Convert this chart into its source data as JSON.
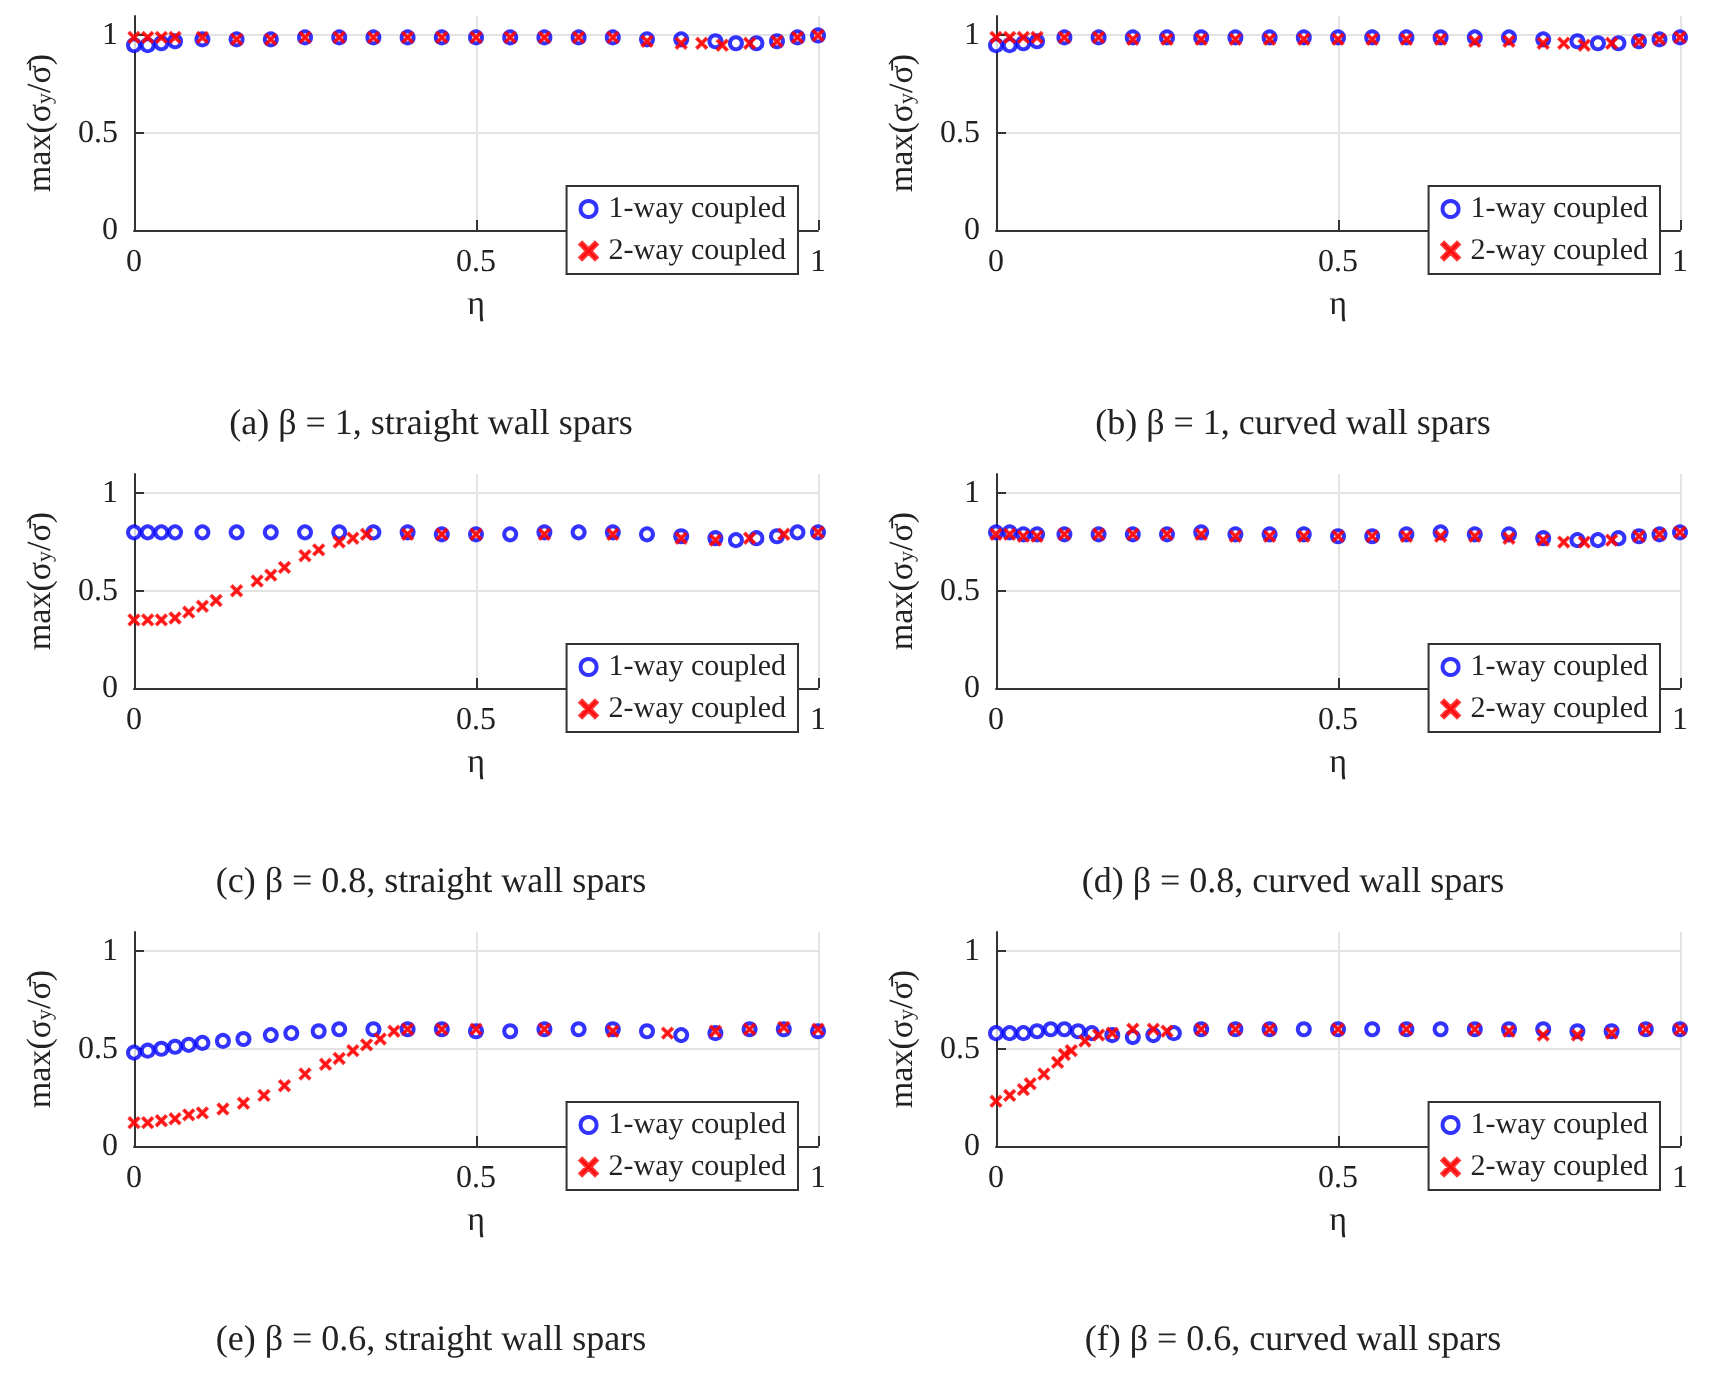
{
  "chart_data": [
    {
      "type": "scatter",
      "title": "(a) β = 1, straight wall spars",
      "xlabel": "η",
      "ylabel": "max(σ$_{y}$/σ̄)",
      "xlim": [
        0,
        1
      ],
      "xticks": [
        0,
        0.5,
        1
      ],
      "ylim": [
        0,
        1.1
      ],
      "yticks": [
        0,
        0.5,
        1
      ],
      "grid": true,
      "legend": "bottom right",
      "series": [
        {
          "name": "1-way coupled",
          "color": "#0000ff",
          "marker": "circle",
          "x": [
            0,
            0.02,
            0.04,
            0.06,
            0.1,
            0.15,
            0.2,
            0.25,
            0.3,
            0.35,
            0.4,
            0.45,
            0.5,
            0.55,
            0.6,
            0.65,
            0.7,
            0.75,
            0.8,
            0.85,
            0.88,
            0.91,
            0.94,
            0.97,
            1
          ],
          "values": [
            0.95,
            0.95,
            0.96,
            0.97,
            0.98,
            0.98,
            0.98,
            0.99,
            0.99,
            0.99,
            0.99,
            0.99,
            0.99,
            0.99,
            0.99,
            0.99,
            0.99,
            0.98,
            0.98,
            0.97,
            0.96,
            0.96,
            0.97,
            0.99,
            1
          ]
        },
        {
          "name": "2-way coupled",
          "color": "#ff0000",
          "marker": "cross",
          "x": [
            0,
            0.02,
            0.04,
            0.06,
            0.1,
            0.15,
            0.2,
            0.25,
            0.3,
            0.35,
            0.4,
            0.45,
            0.5,
            0.55,
            0.6,
            0.65,
            0.7,
            0.75,
            0.8,
            0.83,
            0.86,
            0.9,
            0.94,
            0.97,
            1
          ],
          "values": [
            0.99,
            0.99,
            0.99,
            0.99,
            0.99,
            0.98,
            0.98,
            0.99,
            0.99,
            0.99,
            0.99,
            0.99,
            0.99,
            0.99,
            0.99,
            0.99,
            0.99,
            0.97,
            0.96,
            0.96,
            0.95,
            0.96,
            0.97,
            0.99,
            1
          ]
        }
      ]
    },
    {
      "type": "scatter",
      "title": "(b) β = 1, curved wall spars",
      "xlabel": "η",
      "ylabel": "max(σ$_{y}$/σ̄)",
      "xlim": [
        0,
        1
      ],
      "xticks": [
        0,
        0.5,
        1
      ],
      "ylim": [
        0,
        1.1
      ],
      "yticks": [
        0,
        0.5,
        1
      ],
      "grid": true,
      "legend": "bottom right",
      "series": [
        {
          "name": "1-way coupled",
          "color": "#0000ff",
          "marker": "circle",
          "x": [
            0,
            0.02,
            0.04,
            0.06,
            0.1,
            0.15,
            0.2,
            0.25,
            0.3,
            0.35,
            0.4,
            0.45,
            0.5,
            0.55,
            0.6,
            0.65,
            0.7,
            0.75,
            0.8,
            0.85,
            0.88,
            0.91,
            0.94,
            0.97,
            1
          ],
          "values": [
            0.95,
            0.95,
            0.96,
            0.97,
            0.99,
            0.99,
            0.99,
            0.99,
            0.99,
            0.99,
            0.99,
            0.99,
            0.99,
            0.99,
            0.99,
            0.99,
            0.99,
            0.99,
            0.98,
            0.97,
            0.96,
            0.96,
            0.97,
            0.98,
            0.99
          ]
        },
        {
          "name": "2-way coupled",
          "color": "#ff0000",
          "marker": "cross",
          "x": [
            0,
            0.02,
            0.04,
            0.06,
            0.1,
            0.15,
            0.2,
            0.25,
            0.3,
            0.35,
            0.4,
            0.45,
            0.5,
            0.55,
            0.6,
            0.65,
            0.7,
            0.75,
            0.8,
            0.83,
            0.86,
            0.9,
            0.94,
            0.97,
            1
          ],
          "values": [
            0.99,
            0.99,
            0.99,
            0.99,
            0.99,
            0.99,
            0.98,
            0.98,
            0.98,
            0.98,
            0.98,
            0.98,
            0.98,
            0.98,
            0.98,
            0.98,
            0.97,
            0.97,
            0.96,
            0.96,
            0.95,
            0.96,
            0.97,
            0.98,
            0.99
          ]
        }
      ]
    },
    {
      "type": "scatter",
      "title": "(c) β = 0.8, straight wall spars",
      "xlabel": "η",
      "ylabel": "max(σ$_{y}$/σ̄)",
      "xlim": [
        0,
        1
      ],
      "xticks": [
        0,
        0.5,
        1
      ],
      "ylim": [
        0,
        1.1
      ],
      "yticks": [
        0,
        0.5,
        1
      ],
      "grid": true,
      "legend": "bottom right",
      "series": [
        {
          "name": "1-way coupled",
          "color": "#0000ff",
          "marker": "circle",
          "x": [
            0,
            0.02,
            0.04,
            0.06,
            0.1,
            0.15,
            0.2,
            0.25,
            0.3,
            0.35,
            0.4,
            0.45,
            0.5,
            0.55,
            0.6,
            0.65,
            0.7,
            0.75,
            0.8,
            0.85,
            0.88,
            0.91,
            0.94,
            0.97,
            1
          ],
          "values": [
            0.8,
            0.8,
            0.8,
            0.8,
            0.8,
            0.8,
            0.8,
            0.8,
            0.8,
            0.8,
            0.8,
            0.79,
            0.79,
            0.79,
            0.8,
            0.8,
            0.8,
            0.79,
            0.78,
            0.77,
            0.76,
            0.77,
            0.78,
            0.8,
            0.8
          ]
        },
        {
          "name": "2-way coupled",
          "color": "#ff0000",
          "marker": "cross",
          "x": [
            0,
            0.02,
            0.04,
            0.06,
            0.08,
            0.1,
            0.12,
            0.15,
            0.18,
            0.2,
            0.22,
            0.25,
            0.27,
            0.3,
            0.32,
            0.34,
            0.4,
            0.45,
            0.5,
            0.6,
            0.7,
            0.8,
            0.85,
            0.9,
            0.95,
            1
          ],
          "values": [
            0.35,
            0.35,
            0.35,
            0.36,
            0.39,
            0.42,
            0.45,
            0.5,
            0.55,
            0.58,
            0.62,
            0.68,
            0.71,
            0.75,
            0.77,
            0.79,
            0.79,
            0.79,
            0.79,
            0.79,
            0.79,
            0.77,
            0.76,
            0.77,
            0.79,
            0.8
          ]
        }
      ]
    },
    {
      "type": "scatter",
      "title": "(d) β = 0.8, curved wall spars",
      "xlabel": "η",
      "ylabel": "max(σ$_{y}$/σ̄)",
      "xlim": [
        0,
        1
      ],
      "xticks": [
        0,
        0.5,
        1
      ],
      "ylim": [
        0,
        1.1
      ],
      "yticks": [
        0,
        0.5,
        1
      ],
      "grid": true,
      "legend": "bottom right",
      "series": [
        {
          "name": "1-way coupled",
          "color": "#0000ff",
          "marker": "circle",
          "x": [
            0,
            0.02,
            0.04,
            0.06,
            0.1,
            0.15,
            0.2,
            0.25,
            0.3,
            0.35,
            0.4,
            0.45,
            0.5,
            0.55,
            0.6,
            0.65,
            0.7,
            0.75,
            0.8,
            0.85,
            0.88,
            0.91,
            0.94,
            0.97,
            1
          ],
          "values": [
            0.8,
            0.8,
            0.79,
            0.79,
            0.79,
            0.79,
            0.79,
            0.79,
            0.8,
            0.79,
            0.79,
            0.79,
            0.78,
            0.78,
            0.79,
            0.8,
            0.79,
            0.79,
            0.77,
            0.76,
            0.76,
            0.77,
            0.78,
            0.79,
            0.8
          ]
        },
        {
          "name": "2-way coupled",
          "color": "#ff0000",
          "marker": "cross",
          "x": [
            0,
            0.02,
            0.04,
            0.06,
            0.1,
            0.15,
            0.2,
            0.25,
            0.3,
            0.35,
            0.4,
            0.45,
            0.5,
            0.55,
            0.6,
            0.65,
            0.7,
            0.75,
            0.8,
            0.83,
            0.86,
            0.9,
            0.94,
            0.97,
            1
          ],
          "values": [
            0.79,
            0.79,
            0.78,
            0.78,
            0.79,
            0.79,
            0.79,
            0.79,
            0.79,
            0.78,
            0.78,
            0.78,
            0.78,
            0.78,
            0.78,
            0.78,
            0.78,
            0.77,
            0.76,
            0.75,
            0.75,
            0.76,
            0.78,
            0.79,
            0.8
          ]
        }
      ]
    },
    {
      "type": "scatter",
      "title": "(e) β = 0.6, straight wall spars",
      "xlabel": "η",
      "ylabel": "max(σ$_{y}$/σ̄)",
      "xlim": [
        0,
        1
      ],
      "xticks": [
        0,
        0.5,
        1
      ],
      "ylim": [
        0,
        1.1
      ],
      "yticks": [
        0,
        0.5,
        1
      ],
      "grid": true,
      "legend": "bottom right",
      "series": [
        {
          "name": "1-way coupled",
          "color": "#0000ff",
          "marker": "circle",
          "x": [
            0,
            0.02,
            0.04,
            0.06,
            0.08,
            0.1,
            0.13,
            0.16,
            0.2,
            0.23,
            0.27,
            0.3,
            0.35,
            0.4,
            0.45,
            0.5,
            0.55,
            0.6,
            0.65,
            0.7,
            0.75,
            0.8,
            0.85,
            0.9,
            0.95,
            1
          ],
          "values": [
            0.48,
            0.49,
            0.5,
            0.51,
            0.52,
            0.53,
            0.54,
            0.55,
            0.57,
            0.58,
            0.59,
            0.6,
            0.6,
            0.6,
            0.6,
            0.59,
            0.59,
            0.6,
            0.6,
            0.6,
            0.59,
            0.57,
            0.58,
            0.6,
            0.6,
            0.59
          ]
        },
        {
          "name": "2-way coupled",
          "color": "#ff0000",
          "marker": "cross",
          "x": [
            0,
            0.02,
            0.04,
            0.06,
            0.08,
            0.1,
            0.13,
            0.16,
            0.19,
            0.22,
            0.25,
            0.28,
            0.3,
            0.32,
            0.34,
            0.36,
            0.38,
            0.4,
            0.45,
            0.5,
            0.6,
            0.7,
            0.78,
            0.85,
            0.9,
            0.95,
            1
          ],
          "values": [
            0.12,
            0.12,
            0.13,
            0.14,
            0.16,
            0.17,
            0.19,
            0.22,
            0.26,
            0.31,
            0.37,
            0.42,
            0.45,
            0.49,
            0.52,
            0.55,
            0.59,
            0.6,
            0.6,
            0.6,
            0.6,
            0.59,
            0.58,
            0.59,
            0.6,
            0.61,
            0.6
          ]
        }
      ]
    },
    {
      "type": "scatter",
      "title": "(f) β = 0.6, curved wall spars",
      "xlabel": "η",
      "ylabel": "max(σ$_{y}$/σ̄)",
      "xlim": [
        0,
        1
      ],
      "xticks": [
        0,
        0.5,
        1
      ],
      "ylim": [
        0,
        1.1
      ],
      "yticks": [
        0,
        0.5,
        1
      ],
      "grid": true,
      "legend": "bottom right",
      "series": [
        {
          "name": "1-way coupled",
          "color": "#0000ff",
          "marker": "circle",
          "x": [
            0,
            0.02,
            0.04,
            0.06,
            0.08,
            0.1,
            0.12,
            0.14,
            0.17,
            0.2,
            0.23,
            0.26,
            0.3,
            0.35,
            0.4,
            0.45,
            0.5,
            0.55,
            0.6,
            0.65,
            0.7,
            0.75,
            0.8,
            0.85,
            0.9,
            0.95,
            1
          ],
          "values": [
            0.58,
            0.58,
            0.58,
            0.59,
            0.6,
            0.6,
            0.59,
            0.58,
            0.57,
            0.56,
            0.57,
            0.58,
            0.6,
            0.6,
            0.6,
            0.6,
            0.6,
            0.6,
            0.6,
            0.6,
            0.6,
            0.6,
            0.6,
            0.59,
            0.59,
            0.6,
            0.6
          ]
        },
        {
          "name": "2-way coupled",
          "color": "#ff0000",
          "marker": "cross",
          "x": [
            0,
            0.02,
            0.04,
            0.05,
            0.07,
            0.09,
            0.1,
            0.11,
            0.13,
            0.15,
            0.17,
            0.2,
            0.23,
            0.25,
            0.3,
            0.35,
            0.4,
            0.5,
            0.6,
            0.7,
            0.75,
            0.8,
            0.85,
            0.9,
            0.95,
            1
          ],
          "values": [
            0.23,
            0.26,
            0.29,
            0.32,
            0.37,
            0.43,
            0.47,
            0.49,
            0.54,
            0.57,
            0.58,
            0.6,
            0.6,
            0.59,
            0.6,
            0.6,
            0.6,
            0.6,
            0.6,
            0.6,
            0.59,
            0.57,
            0.57,
            0.58,
            0.6,
            0.6
          ]
        }
      ]
    }
  ]
}
